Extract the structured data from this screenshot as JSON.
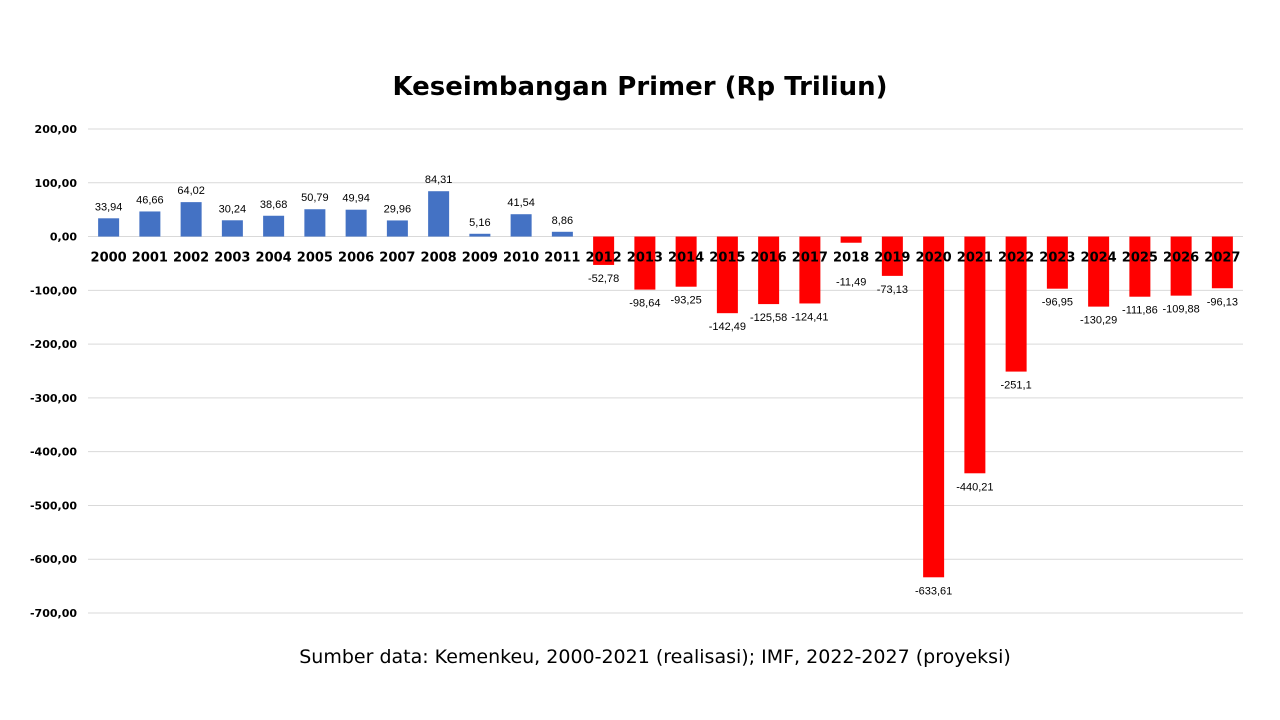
{
  "chart_data": {
    "type": "bar",
    "title": "Keseimbangan Primer (Rp Triliun)",
    "source": "Sumber data: Kemenkeu, 2000-2021 (realisasi); IMF, 2022-2027 (proyeksi)",
    "xlabel": "",
    "ylabel": "",
    "ylim": [
      -700,
      200
    ],
    "yticks": [
      "200,00",
      "100,00",
      "0,00",
      "-100,00",
      "-200,00",
      "-300,00",
      "-400,00",
      "-500,00",
      "-600,00",
      "-700,00"
    ],
    "ytick_values": [
      200,
      100,
      0,
      -100,
      -200,
      -300,
      -400,
      -500,
      -600,
      -700
    ],
    "grid": true,
    "categories": [
      "2000",
      "2001",
      "2002",
      "2003",
      "2004",
      "2005",
      "2006",
      "2007",
      "2008",
      "2009",
      "2010",
      "2011",
      "2012",
      "2013",
      "2014",
      "2015",
      "2016",
      "2017",
      "2018",
      "2019",
      "2020",
      "2021",
      "2022",
      "2023",
      "2024",
      "2025",
      "2026",
      "2027"
    ],
    "values": [
      33.94,
      46.66,
      64.02,
      30.24,
      38.68,
      50.79,
      49.94,
      29.96,
      84.31,
      5.16,
      41.54,
      8.86,
      -52.78,
      -98.64,
      -93.25,
      -142.49,
      -125.58,
      -124.41,
      -11.49,
      -73.13,
      -633.61,
      -440.21,
      -251.1,
      -96.95,
      -130.29,
      -111.86,
      -109.88,
      -96.13
    ],
    "labels": [
      "33,94",
      "46,66",
      "64,02",
      "30,24",
      "38,68",
      "50,79",
      "49,94",
      "29,96",
      "84,31",
      "5,16",
      "41,54",
      "8,86",
      "-52,78",
      "-98,64",
      "-93,25",
      "-142,49",
      "-125,58",
      "-124,41",
      "-11,49",
      "-73,13",
      "-633,61",
      "-440,21",
      "-251,1",
      "-96,95",
      "-130,29",
      "-111,86",
      "-109,88",
      "-96,13"
    ],
    "colors": {
      "positive": "#4472C4",
      "negative": "#FF0000",
      "grid": "#D9D9D9"
    }
  }
}
